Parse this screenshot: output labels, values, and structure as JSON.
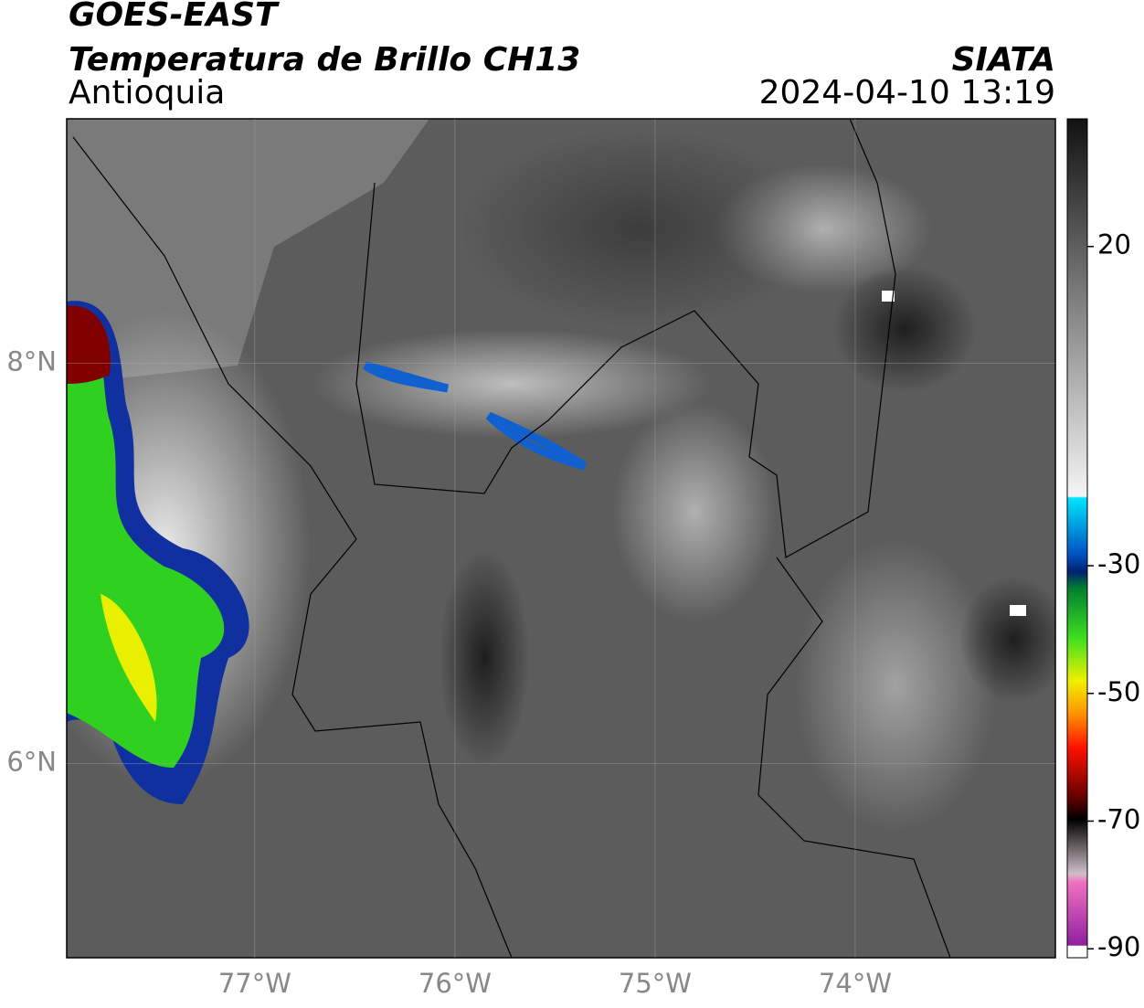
{
  "header": {
    "title": "GOES-EAST",
    "subtitle": "Temperatura de Brillo CH13",
    "region": "Antioquia",
    "source": "SIATA",
    "datetime": "2024-04-10 13:19"
  },
  "map": {
    "xlim": [
      -77.94,
      -73.0
    ],
    "ylim": [
      5.03,
      9.22
    ],
    "xticks": [
      {
        "value": -77,
        "label": "77°W"
      },
      {
        "value": -76,
        "label": "76°W"
      },
      {
        "value": -75,
        "label": "75°W"
      },
      {
        "value": -74,
        "label": "74°W"
      }
    ],
    "yticks": [
      {
        "value": 8,
        "label": "8°N"
      },
      {
        "value": 6,
        "label": "6°N"
      }
    ],
    "grid": true
  },
  "colorbar": {
    "clim": [
      -91.4,
      40
    ],
    "ticks": [
      20,
      -30,
      -50,
      -70,
      -90
    ]
  }
}
